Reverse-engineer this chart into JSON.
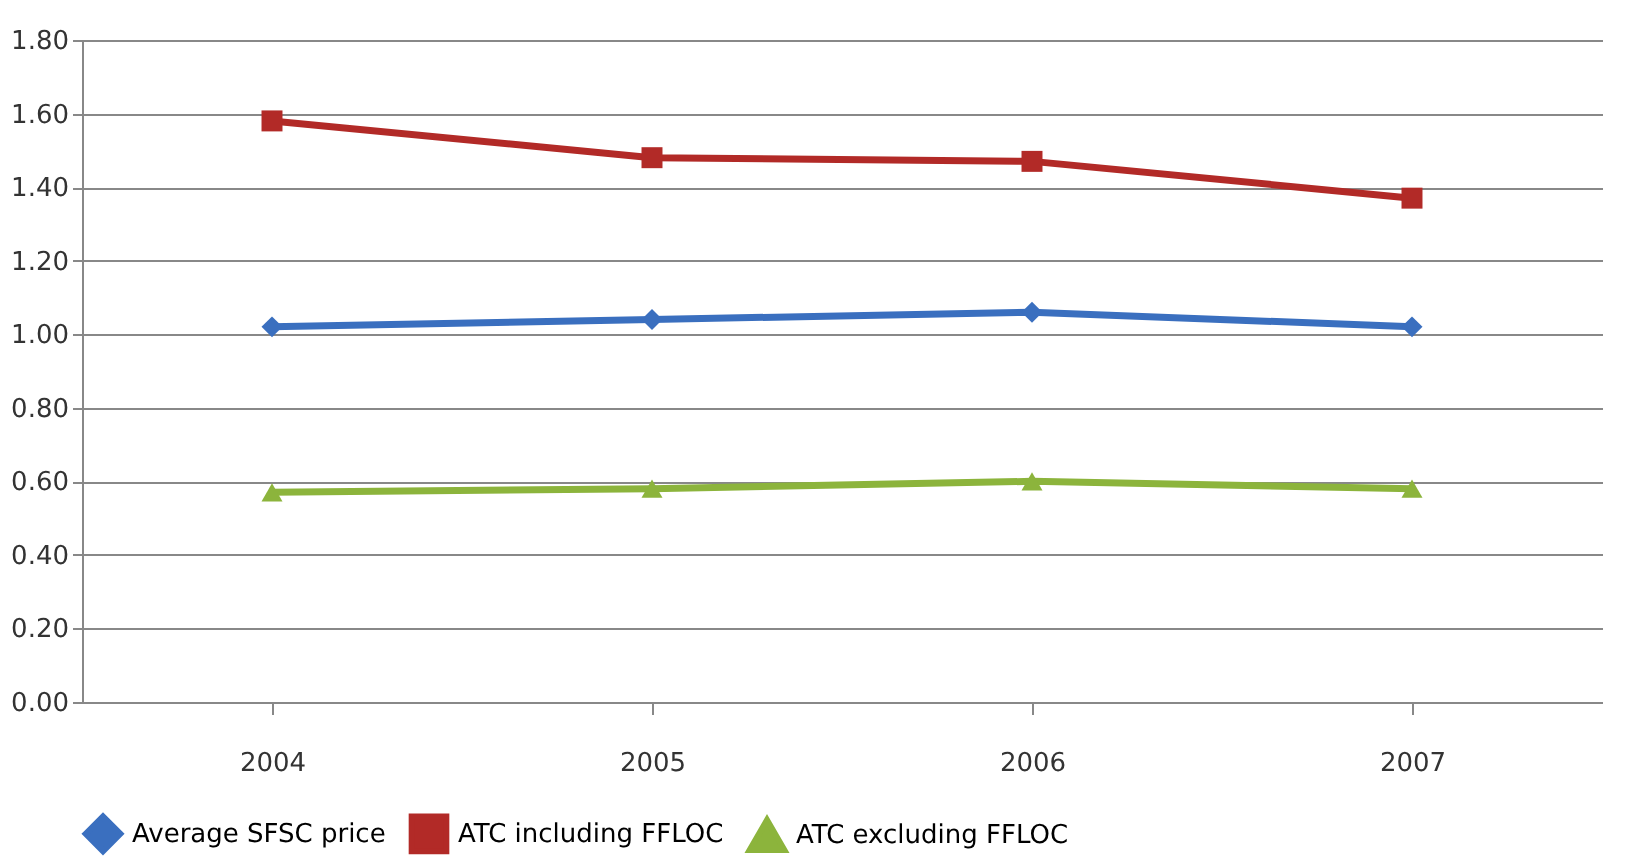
{
  "chart_data": {
    "type": "line",
    "categories": [
      "2004",
      "2005",
      "2006",
      "2007"
    ],
    "series": [
      {
        "name": "Average SFSC price",
        "color": "#3a6fbf",
        "marker": "diamond",
        "values": [
          1.02,
          1.04,
          1.06,
          1.02
        ]
      },
      {
        "name": "ATC including FFLOC",
        "color": "#b22a27",
        "marker": "square",
        "values": [
          1.58,
          1.48,
          1.47,
          1.37
        ]
      },
      {
        "name": "ATC excluding FFLOC",
        "color": "#8cb43c",
        "marker": "triangle",
        "values": [
          0.57,
          0.58,
          0.6,
          0.58
        ]
      }
    ],
    "ylim": [
      0,
      1.8
    ],
    "yticks": [
      {
        "value": 0,
        "label": "0.00"
      },
      {
        "value": 0.2,
        "label": "0.20"
      },
      {
        "value": 0.4,
        "label": "0.40"
      },
      {
        "value": 0.6,
        "label": "0.60"
      },
      {
        "value": 0.8,
        "label": "0.80"
      },
      {
        "value": 1.0,
        "label": "1.00"
      },
      {
        "value": 1.2,
        "label": "1.20"
      },
      {
        "value": 1.4,
        "label": "1.40"
      },
      {
        "value": 1.6,
        "label": "1.60"
      },
      {
        "value": 1.8,
        "label": "1.80"
      }
    ],
    "grid": "y",
    "legend": "bottom",
    "line_style": "solid"
  }
}
